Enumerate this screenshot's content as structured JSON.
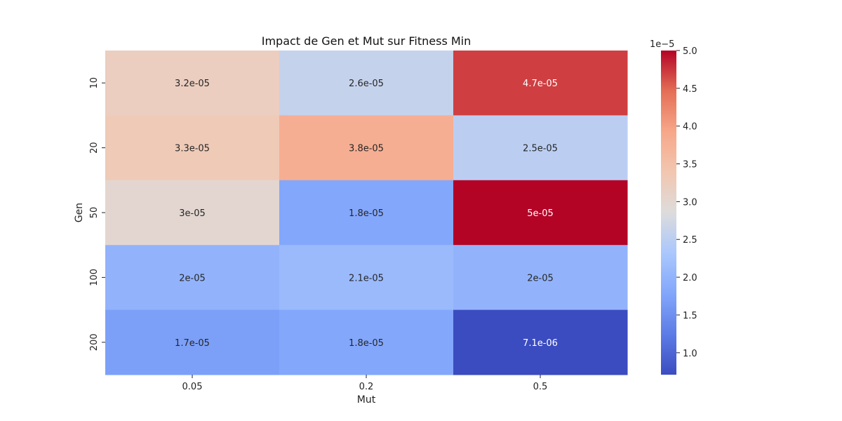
{
  "chart_data": {
    "type": "heatmap",
    "title": "Impact de Gen et Mut sur Fitness Min",
    "xlabel": "Mut",
    "ylabel": "Gen",
    "x_categories": [
      "0.05",
      "0.2",
      "0.5"
    ],
    "y_categories": [
      "10",
      "20",
      "50",
      "100",
      "200"
    ],
    "values": [
      [
        3.2e-05,
        2.6e-05,
        4.7e-05
      ],
      [
        3.3e-05,
        3.8e-05,
        2.5e-05
      ],
      [
        3e-05,
        1.8e-05,
        5e-05
      ],
      [
        2e-05,
        2.1e-05,
        2e-05
      ],
      [
        1.7e-05,
        1.8e-05,
        7.1e-06
      ]
    ],
    "cell_labels": [
      [
        "3.2e-05",
        "2.6e-05",
        "4.7e-05"
      ],
      [
        "3.3e-05",
        "3.8e-05",
        "2.5e-05"
      ],
      [
        "3e-05",
        "1.8e-05",
        "5e-05"
      ],
      [
        "2e-05",
        "2.1e-05",
        "2e-05"
      ],
      [
        "1.7e-05",
        "1.8e-05",
        "7.1e-06"
      ]
    ],
    "colormap": "coolwarm",
    "vmin": 7.1e-06,
    "vmax": 5e-05,
    "colorbar": {
      "exponent_label": "1e−5",
      "scale": 1e-05,
      "ticks": [
        1.0,
        1.5,
        2.0,
        2.5,
        3.0,
        3.5,
        4.0,
        4.5,
        5.0
      ],
      "tick_labels": [
        "1.0",
        "1.5",
        "2.0",
        "2.5",
        "3.0",
        "3.5",
        "4.0",
        "4.5",
        "5.0"
      ]
    }
  }
}
